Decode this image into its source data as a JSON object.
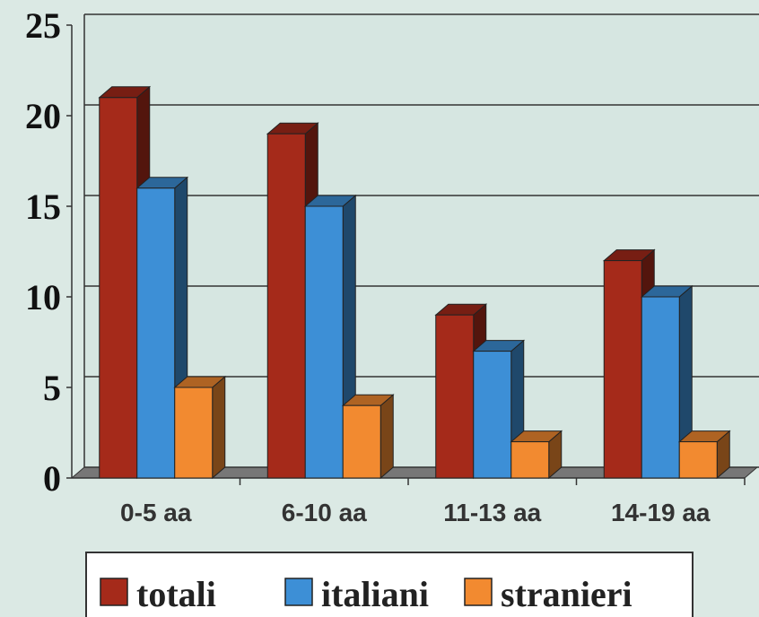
{
  "chart_data": {
    "type": "bar",
    "categories": [
      "0-5 aa",
      "6-10 aa",
      "11-13 aa",
      "14-19 aa"
    ],
    "series": [
      {
        "name": "totali",
        "color": "#a52a1a",
        "values": [
          21,
          19,
          9,
          12
        ]
      },
      {
        "name": "italiani",
        "color": "#3d8fd6",
        "values": [
          16,
          15,
          7,
          10
        ]
      },
      {
        "name": "stranieri",
        "color": "#f28a30",
        "values": [
          5,
          4,
          2,
          2
        ]
      }
    ],
    "ylim": [
      0,
      25
    ],
    "yticks": [
      0,
      5,
      10,
      15,
      20,
      25
    ],
    "grid": true,
    "legend": "bottom"
  }
}
